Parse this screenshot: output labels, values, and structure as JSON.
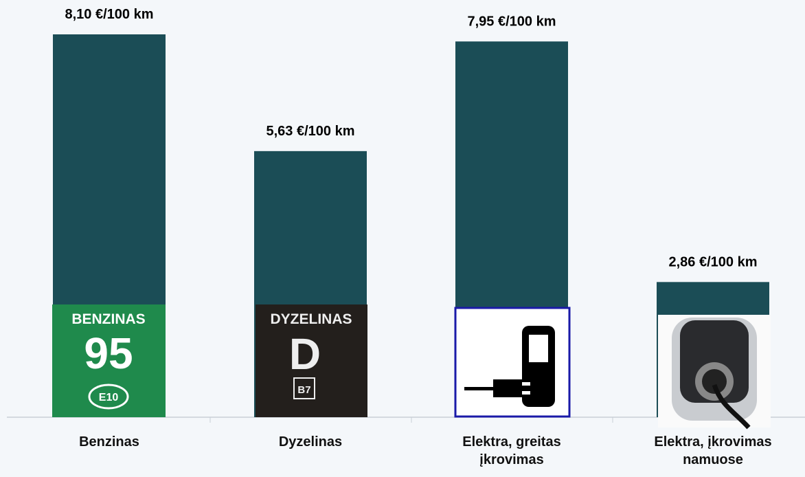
{
  "chart_data": {
    "type": "bar",
    "categories": [
      "Benzinas",
      "Dyzelinas",
      "Elektra, greitas įkrovimas",
      "Elektra, įkrovimas namuose"
    ],
    "values": [
      8.1,
      5.63,
      7.95,
      2.86
    ],
    "value_labels": [
      "8,10 €/100 km",
      "5,63 €/100 km",
      "7,95 €/100 km",
      "2,86 €/100 km"
    ],
    "color": "#1b4d56"
  },
  "badges": {
    "benzinas": [
      "BENZINAS",
      "95",
      "E10"
    ],
    "dyzelinas": [
      "DYZELINAS",
      "D",
      "B7"
    ]
  }
}
